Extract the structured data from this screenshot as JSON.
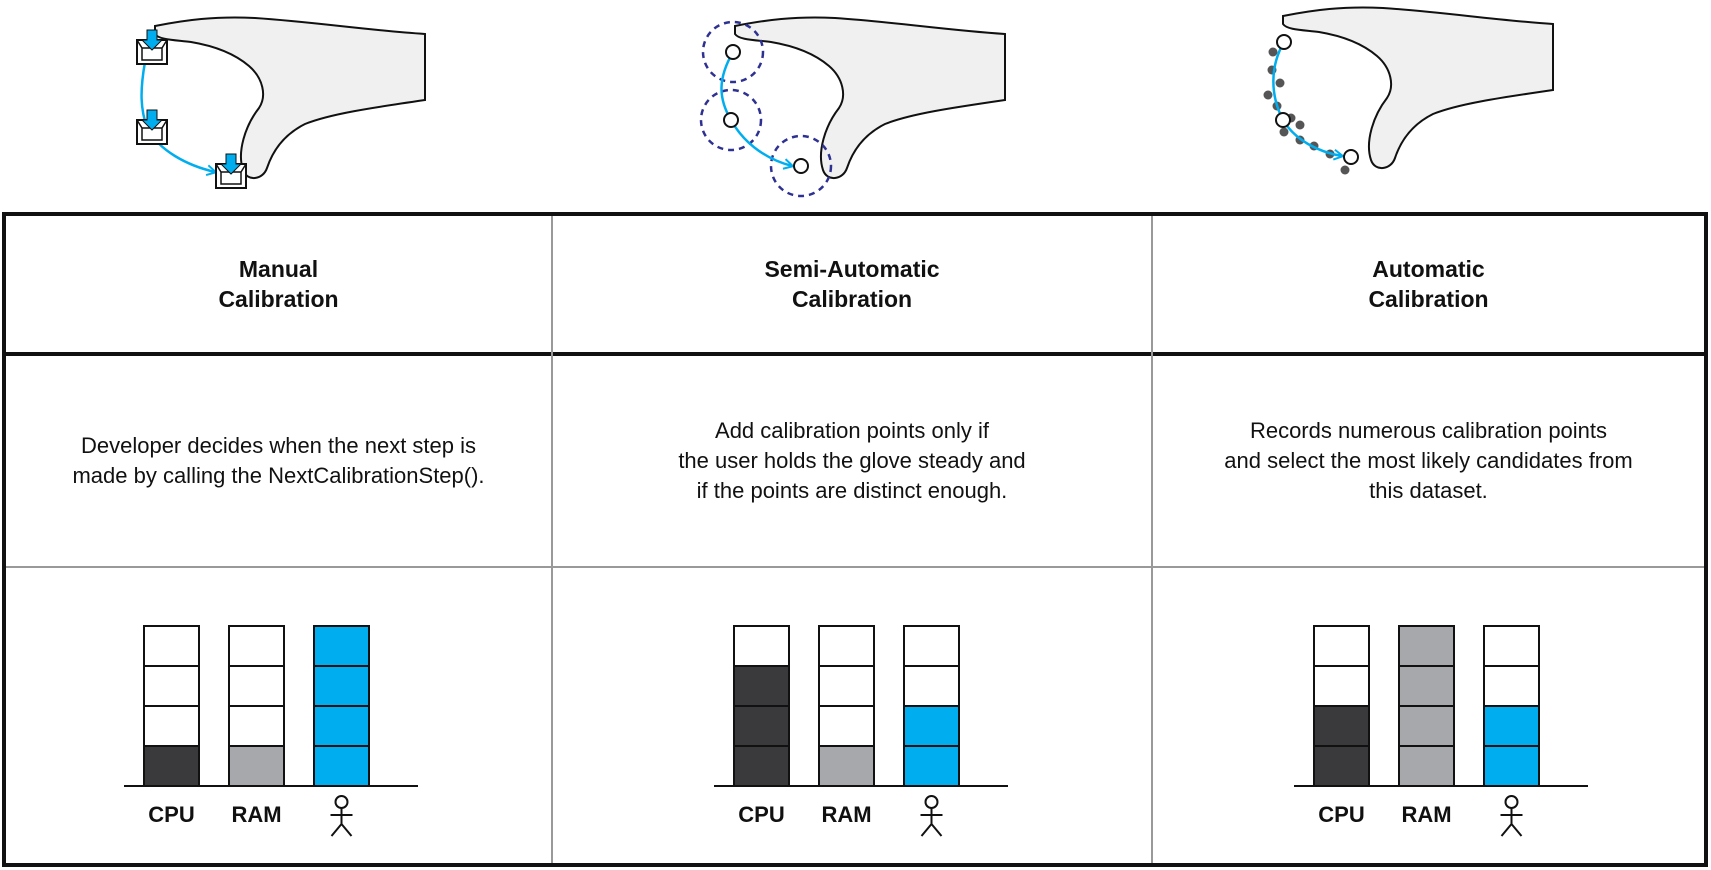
{
  "columns": [
    {
      "title": "Manual\nCalibration",
      "description": "Developer decides when the next step is\nmade by calling the NextCalibrationStep().",
      "resources": [
        {
          "label": "CPU",
          "level": 1,
          "color": "#3a3a3c"
        },
        {
          "label": "RAM",
          "level": 1,
          "color": "#a7a8ab"
        },
        {
          "label": "user-icon",
          "level": 4,
          "color": "#00aeef"
        }
      ]
    },
    {
      "title": "Semi-Automatic\nCalibration",
      "description": "Add calibration points only if\nthe user holds the glove steady and\nif the points are distinct enough.",
      "resources": [
        {
          "label": "CPU",
          "level": 3,
          "color": "#3a3a3c"
        },
        {
          "label": "RAM",
          "level": 1,
          "color": "#a7a8ab"
        },
        {
          "label": "user-icon",
          "level": 2,
          "color": "#00aeef"
        }
      ]
    },
    {
      "title": "Automatic\nCalibration",
      "description": "Records numerous calibration points\nand select the most likely candidates from\nthis dataset.",
      "resources": [
        {
          "label": "CPU",
          "level": 2,
          "color": "#3a3a3c"
        },
        {
          "label": "RAM",
          "level": 4,
          "color": "#a7a8ab"
        },
        {
          "label": "user-icon",
          "level": 2,
          "color": "#00aeef"
        }
      ]
    }
  ],
  "colors": {
    "accent": "#00aeef",
    "dashed_circle": "#2e3192",
    "dots": "#555555"
  }
}
